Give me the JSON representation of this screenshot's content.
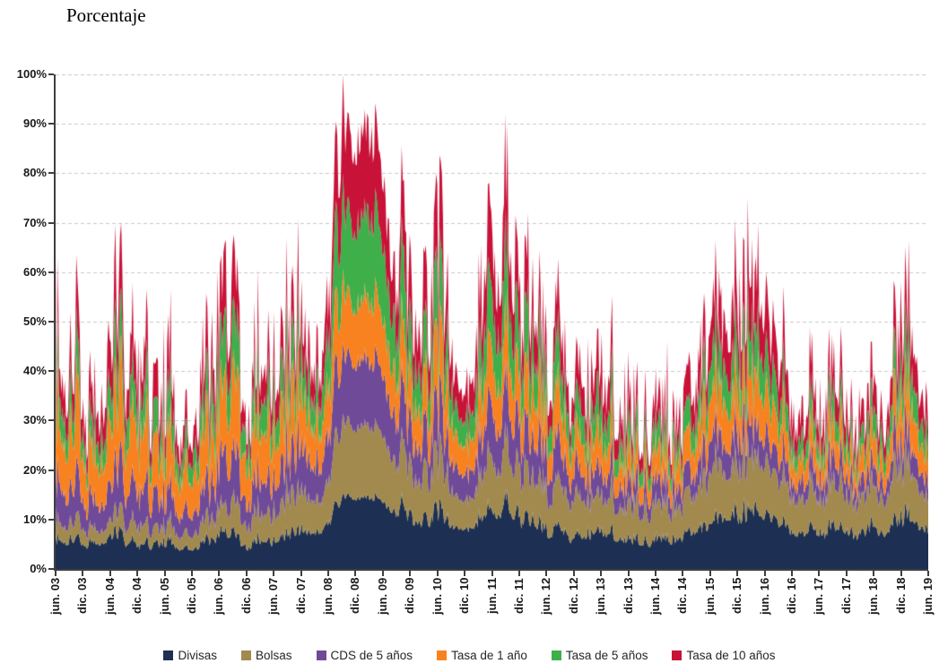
{
  "title": "Porcentaje",
  "chart_data": {
    "type": "area",
    "stacked": true,
    "title": "Porcentaje",
    "x_axis": {
      "ticks": [
        "jun. 03",
        "dic. 03",
        "jun. 04",
        "dic. 04",
        "jun. 05",
        "dic. 05",
        "jun. 06",
        "dic. 06",
        "jun. 07",
        "dic. 07",
        "jun. 08",
        "dic. 08",
        "jun. 09",
        "dic. 09",
        "jun. 10",
        "dic. 10",
        "jun. 11",
        "dic. 11",
        "jun. 12",
        "dic. 12",
        "jun. 13",
        "dic. 13",
        "jun. 14",
        "dic. 14",
        "jun. 15",
        "dic. 15",
        "jun. 16",
        "dic. 16",
        "jun. 17",
        "dic. 17",
        "jun. 18",
        "dic. 18",
        "jun. 19"
      ],
      "months_start": 0,
      "months_end": 192
    },
    "y_axis": {
      "ticks": [
        "0%",
        "10%",
        "20%",
        "30%",
        "40%",
        "50%",
        "60%",
        "70%",
        "80%",
        "90%",
        "100%"
      ],
      "min": 0,
      "max": 100,
      "unit": "%"
    },
    "grid": {
      "horizontal": true,
      "style": "dashed",
      "color": "#c9c9c9"
    },
    "axis_color": "#3f3f3f",
    "legend": {
      "position": "bottom"
    },
    "series": [
      {
        "name": "Divisas",
        "color": "#1d3053",
        "amp": 0.6,
        "base": [
          5,
          5,
          6,
          4,
          5,
          4,
          6,
          4,
          5,
          7,
          9,
          14,
          15,
          15,
          14,
          12,
          10,
          9,
          9,
          10,
          11,
          9,
          7,
          5,
          8,
          6,
          5,
          6,
          8,
          9,
          10,
          8,
          7,
          7,
          8,
          8,
          8
        ]
      },
      {
        "name": "Bolsas",
        "color": "#a28a4e",
        "amp": 0.75,
        "base": [
          3,
          3,
          3,
          3,
          3,
          3,
          4,
          4,
          5,
          7,
          8,
          14,
          15,
          15,
          14,
          11,
          9,
          8,
          7,
          8,
          9,
          8,
          7,
          6,
          8,
          7,
          6,
          6,
          8,
          8,
          9,
          8,
          7,
          7,
          8,
          8,
          7
        ]
      },
      {
        "name": "CDS de 5 años",
        "color": "#6f4a99",
        "amp": 0.9,
        "base": [
          7,
          6,
          7,
          6,
          6,
          5,
          7,
          5,
          6,
          8,
          9,
          13,
          14,
          14,
          13,
          10,
          8,
          7,
          7,
          8,
          9,
          7,
          6,
          4,
          6,
          5,
          4,
          4,
          5,
          5,
          5,
          4,
          4,
          4,
          4,
          4,
          4
        ]
      },
      {
        "name": "Tasa de 1 año",
        "color": "#f8821f",
        "amp": 0.95,
        "base": [
          11,
          10,
          12,
          9,
          10,
          9,
          10,
          8,
          9,
          10,
          10,
          12,
          12,
          13,
          12,
          10,
          9,
          9,
          8,
          9,
          9,
          8,
          7,
          5,
          8,
          6,
          5,
          5,
          7,
          7,
          8,
          6,
          5,
          5,
          6,
          6,
          6
        ]
      },
      {
        "name": "Tasa de 5 años",
        "color": "#3faf4a",
        "amp": 1.0,
        "base": [
          6,
          5,
          7,
          5,
          6,
          5,
          7,
          5,
          6,
          7,
          9,
          16,
          17,
          18,
          16,
          11,
          9,
          8,
          7,
          9,
          10,
          8,
          6,
          4,
          8,
          5,
          4,
          4,
          6,
          6,
          7,
          5,
          4,
          4,
          5,
          5,
          5
        ]
      },
      {
        "name": "Tasa de 10 años",
        "color": "#c91238",
        "amp": 1.0,
        "base": [
          6,
          6,
          9,
          5,
          7,
          5,
          8,
          4,
          6,
          7,
          9,
          16,
          17,
          18,
          15,
          11,
          9,
          9,
          8,
          10,
          11,
          8,
          6,
          4,
          9,
          6,
          4,
          5,
          7,
          8,
          9,
          7,
          5,
          5,
          6,
          6,
          6
        ]
      }
    ],
    "keyframes_months": [
      0,
      6,
      12,
      18,
      24,
      30,
      36,
      42,
      48,
      54,
      60,
      63,
      65,
      69,
      72,
      75,
      78,
      84,
      90,
      96,
      99,
      102,
      108,
      114,
      120,
      126,
      132,
      138,
      144,
      150,
      156,
      162,
      168,
      174,
      180,
      186,
      192
    ],
    "sustain": [
      0.25,
      0.25,
      0.3,
      0.2,
      0.25,
      0.2,
      0.3,
      0.2,
      0.25,
      0.3,
      0.45,
      0.8,
      0.9,
      0.85,
      0.8,
      0.6,
      0.45,
      0.4,
      0.4,
      0.45,
      0.5,
      0.4,
      0.3,
      0.25,
      0.35,
      0.3,
      0.25,
      0.25,
      0.35,
      0.4,
      0.4,
      0.35,
      0.3,
      0.3,
      0.3,
      0.3,
      0.35
    ],
    "noise": {
      "samples": 760,
      "spike_exponent": 1.9,
      "octave_weights": [
        0.5,
        0.32,
        0.28
      ],
      "octave_scales": [
        0.97,
        0.23,
        0.053
      ],
      "seeds": [
        11,
        37,
        71,
        13,
        29
      ],
      "series_mix": [
        0.72,
        0.56
      ],
      "factor_min": [
        0.3,
        0.62
      ],
      "factor_max": [
        2.5,
        -1.52
      ],
      "baseline_m": 0.45
    }
  }
}
